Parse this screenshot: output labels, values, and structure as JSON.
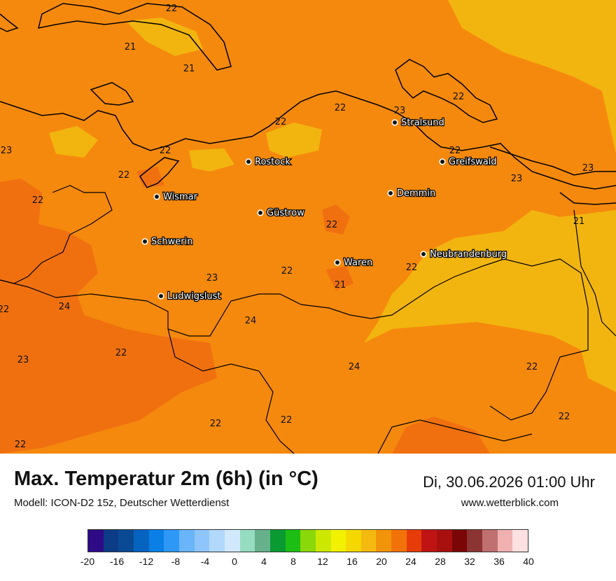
{
  "map": {
    "cities": [
      {
        "name": "Stralsund"
      },
      {
        "name": "Rostock"
      },
      {
        "name": "Greifswald"
      },
      {
        "name": "Wismar"
      },
      {
        "name": "Demmin"
      },
      {
        "name": "Güstrow"
      },
      {
        "name": "Schwerin"
      },
      {
        "name": "Neubrandenburg"
      },
      {
        "name": "Waren"
      },
      {
        "name": "Ludwigslust"
      }
    ],
    "values": [
      "22",
      "21",
      "21",
      "22",
      "22",
      "22",
      "23",
      "22",
      "22",
      "22",
      "23",
      "23",
      "22",
      "22",
      "21",
      "23",
      "22",
      "22",
      "21",
      "22",
      "24",
      "24",
      "22",
      "23",
      "24",
      "22",
      "22",
      "22",
      "22",
      "22",
      "23"
    ]
  },
  "footer": {
    "title": "Max. Temperatur 2m (6h) (in °C)",
    "subtitle": "Modell: ICON-D2 15z, Deutscher Wetterdienst",
    "datetime": "Di, 30.06.2026 01:00 Uhr",
    "website": "www.wetterblick.com"
  },
  "legend": {
    "colors": [
      "#2e0a86",
      "#0c3c86",
      "#0a4a94",
      "#0564c0",
      "#0a80e6",
      "#2e98f6",
      "#6ab4fa",
      "#8ec6fb",
      "#b2d8fc",
      "#d2e8fd",
      "#96dcc0",
      "#66b08c",
      "#0a9a32",
      "#1cbe14",
      "#8ad80a",
      "#cce800",
      "#f2f200",
      "#f4d800",
      "#f4ba10",
      "#f2940a",
      "#f2720a",
      "#e63c0a",
      "#c01414",
      "#a81010",
      "#7a0606",
      "#8c3434",
      "#c07070",
      "#f0b0b0",
      "#fde0e0"
    ],
    "ticks": [
      "-20",
      "-16",
      "-12",
      "-8",
      "-4",
      "0",
      "4",
      "8",
      "12",
      "16",
      "20",
      "24",
      "28",
      "32",
      "36",
      "40"
    ]
  }
}
